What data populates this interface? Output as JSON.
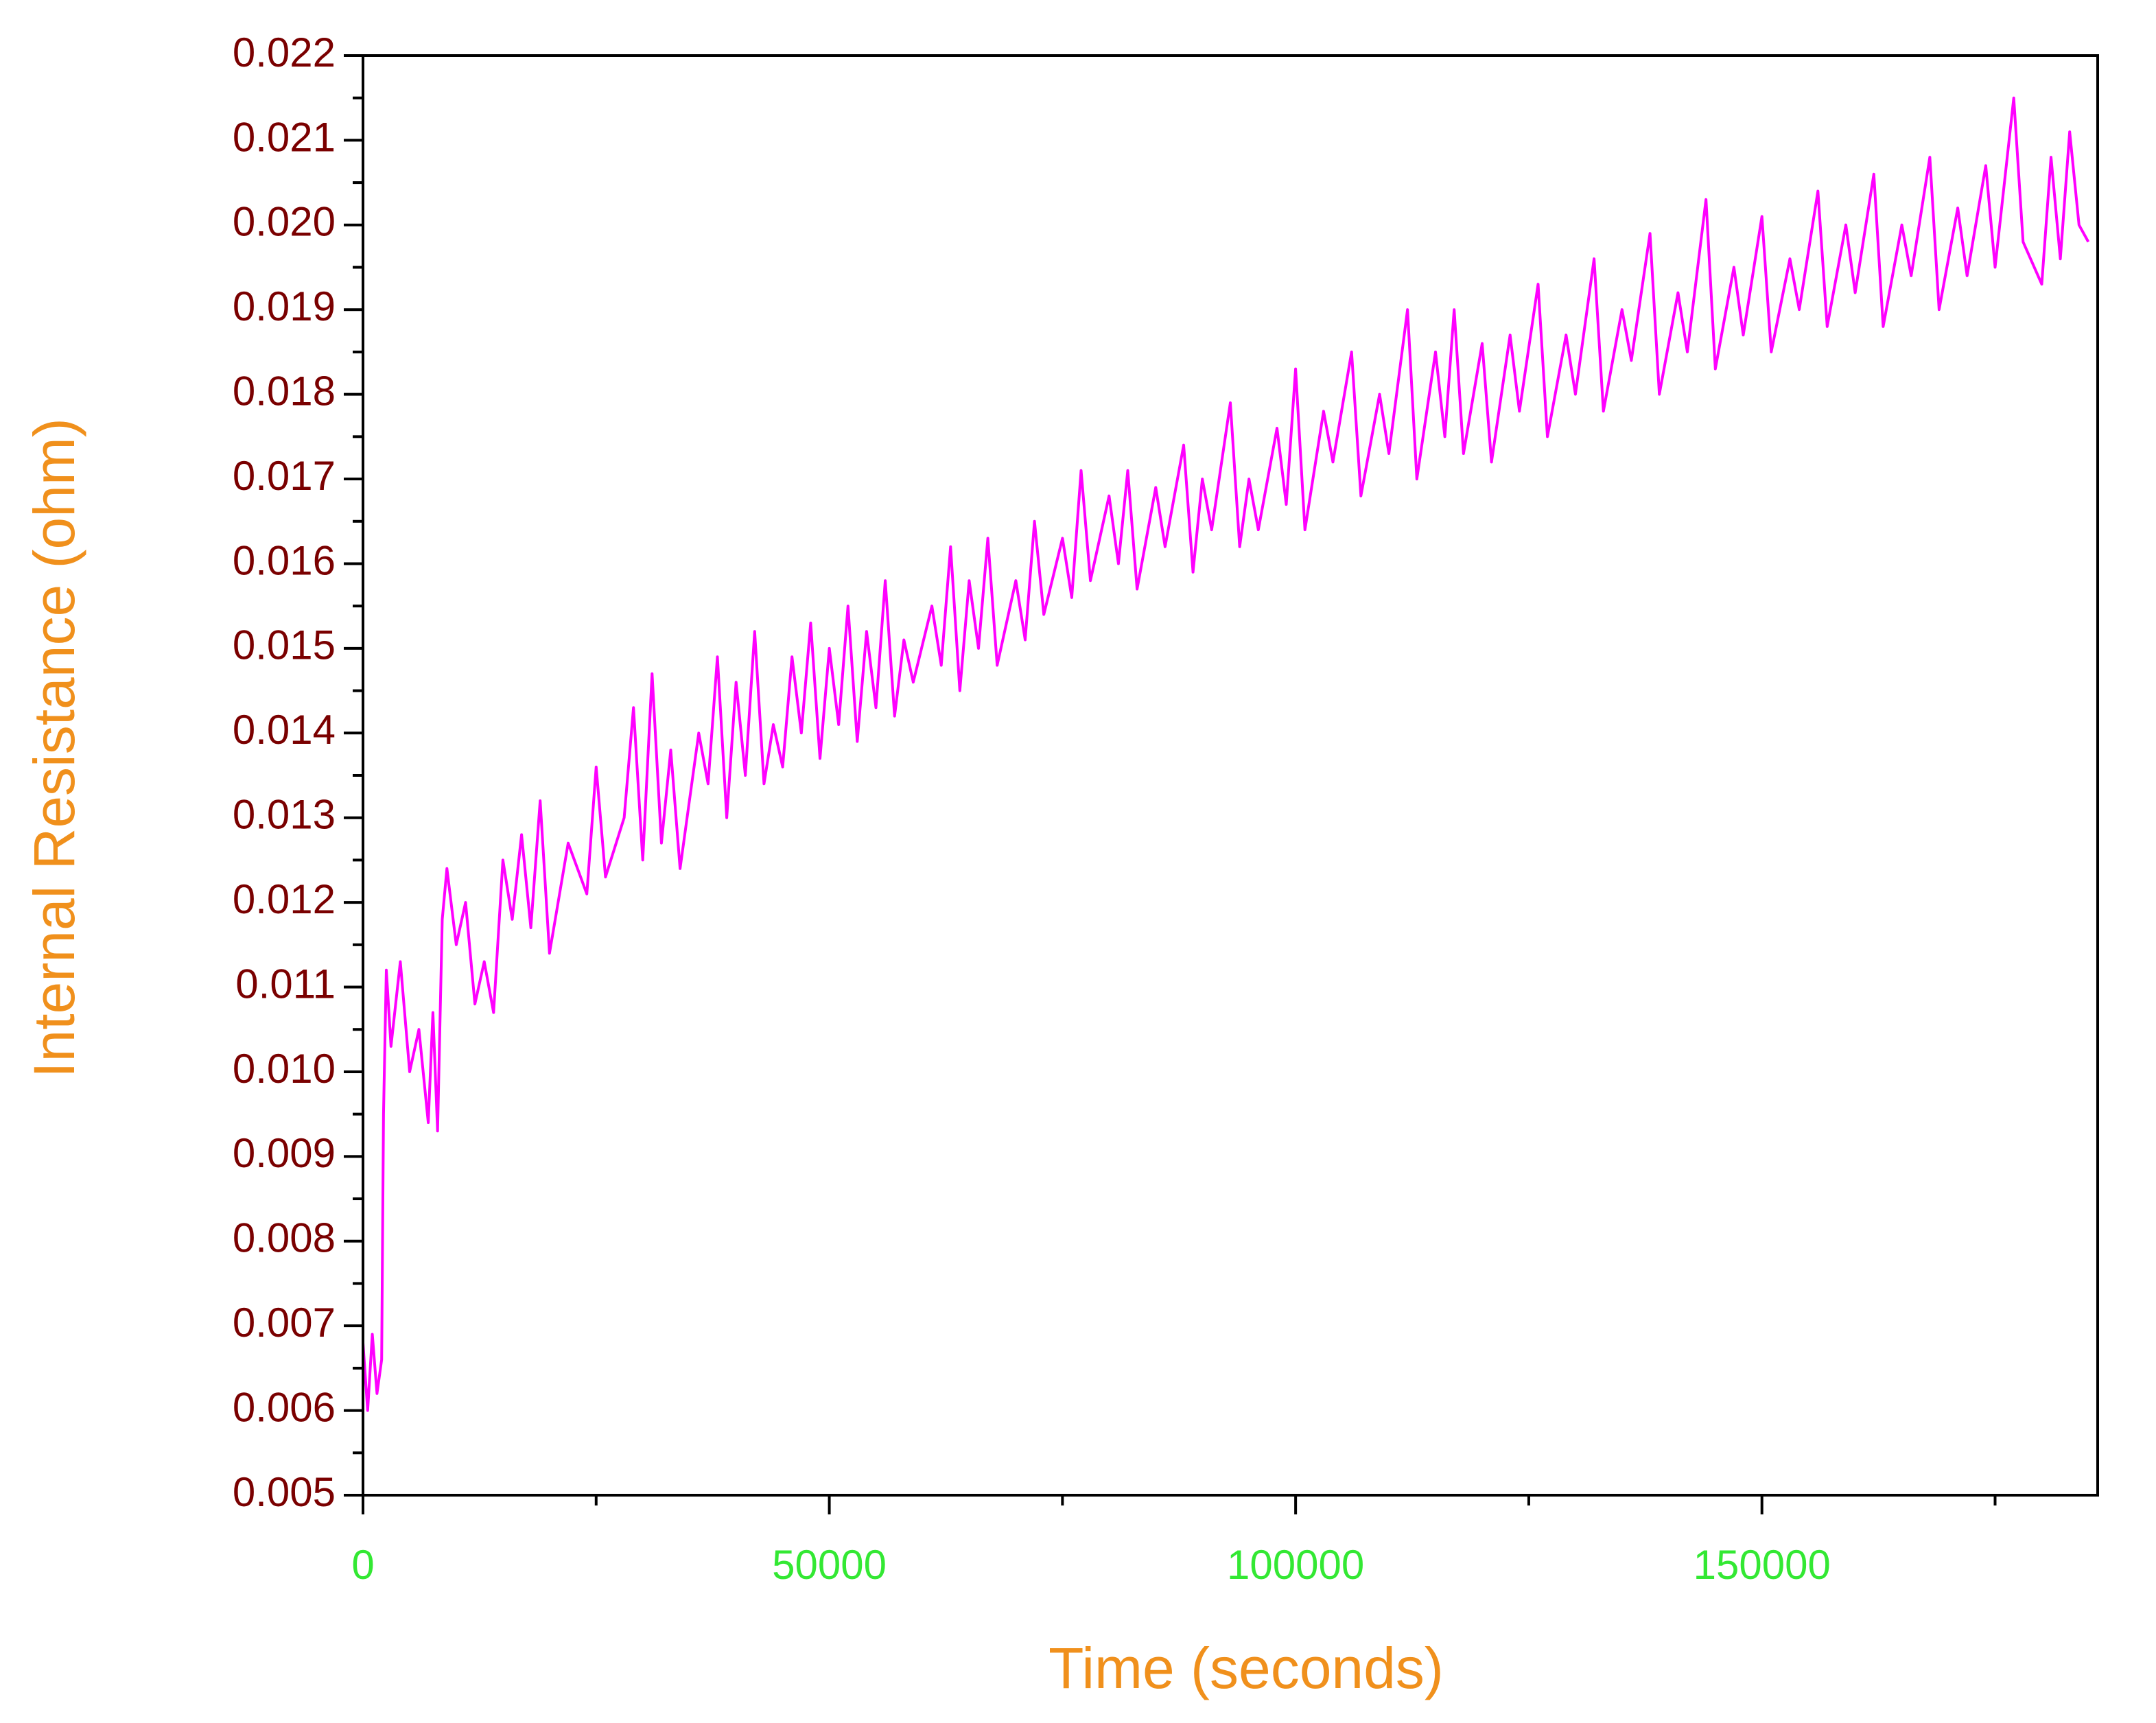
{
  "chart_data": {
    "type": "line",
    "x_label": "Time (seconds)",
    "y_label": "Internal Resistance (ohm)",
    "color": "#ff00ff",
    "xlim": [
      0,
      186000
    ],
    "xticks": [
      0,
      50000,
      100000,
      150000
    ],
    "xminor_ticks": [
      25000,
      75000,
      125000,
      175000
    ],
    "ylim": [
      0.005,
      0.022
    ],
    "yticks": [
      0.005,
      0.006,
      0.007,
      0.008,
      0.009,
      {
        "value": 0.01,
        "label": "0.010"
      },
      0.011,
      0.012,
      0.013,
      0.014,
      0.015,
      0.016,
      0.017,
      0.018,
      0.019,
      {
        "value": 0.02,
        "label": "0.020"
      },
      0.021,
      0.022
    ],
    "yminor_ticks": [
      0.0055,
      0.0065,
      0.0075,
      0.0085,
      0.0095,
      0.0105,
      0.0115,
      0.0125,
      0.0135,
      0.0145,
      0.0155,
      0.0165,
      0.0175,
      0.0185,
      0.0195,
      0.0205,
      0.0215
    ],
    "x": [
      0,
      500,
      1000,
      1500,
      2000,
      2200,
      2500,
      3000,
      4000,
      5000,
      6000,
      7000,
      7500,
      8000,
      8500,
      9000,
      10000,
      11000,
      12000,
      13000,
      14000,
      15000,
      16000,
      17000,
      18000,
      19000,
      20000,
      22000,
      24000,
      25000,
      26000,
      28000,
      29000,
      30000,
      31000,
      32000,
      33000,
      34000,
      36000,
      37000,
      38000,
      39000,
      40000,
      41000,
      42000,
      43000,
      44000,
      45000,
      46000,
      47000,
      48000,
      49000,
      50000,
      51000,
      52000,
      53000,
      54000,
      55000,
      56000,
      57000,
      58000,
      59000,
      61000,
      62000,
      63000,
      64000,
      65000,
      66000,
      67000,
      68000,
      70000,
      71000,
      72000,
      73000,
      75000,
      76000,
      77000,
      78000,
      80000,
      81000,
      82000,
      83000,
      85000,
      86000,
      88000,
      89000,
      90000,
      91000,
      93000,
      94000,
      95000,
      96000,
      98000,
      99000,
      100000,
      101000,
      103000,
      104000,
      106000,
      107000,
      109000,
      110000,
      112000,
      113000,
      115000,
      116000,
      117000,
      118000,
      120000,
      121000,
      123000,
      124000,
      126000,
      127000,
      129000,
      130000,
      132000,
      133000,
      135000,
      136000,
      138000,
      139000,
      141000,
      142000,
      144000,
      145000,
      147000,
      148000,
      150000,
      151000,
      153000,
      154000,
      156000,
      157000,
      159000,
      160000,
      162000,
      163000,
      165000,
      166000,
      168000,
      169000,
      171000,
      172000,
      174000,
      175000,
      177000,
      178000,
      180000,
      181000,
      182000,
      183000,
      184000,
      185000
    ],
    "values": [
      0.0068,
      0.006,
      0.0069,
      0.0062,
      0.0066,
      0.0095,
      0.0112,
      0.0103,
      0.0113,
      0.01,
      0.0105,
      0.0094,
      0.0107,
      0.0093,
      0.0118,
      0.0124,
      0.0115,
      0.012,
      0.0108,
      0.0113,
      0.0107,
      0.0125,
      0.0118,
      0.0128,
      0.0117,
      0.0132,
      0.0114,
      0.0127,
      0.0121,
      0.0136,
      0.0123,
      0.013,
      0.0143,
      0.0125,
      0.0147,
      0.0127,
      0.0138,
      0.0124,
      0.014,
      0.0134,
      0.0149,
      0.013,
      0.0146,
      0.0135,
      0.0152,
      0.0134,
      0.0141,
      0.0136,
      0.0149,
      0.014,
      0.0153,
      0.0137,
      0.015,
      0.0141,
      0.0155,
      0.0139,
      0.0152,
      0.0143,
      0.0158,
      0.0142,
      0.0151,
      0.0146,
      0.0155,
      0.0148,
      0.0162,
      0.0145,
      0.0158,
      0.015,
      0.0163,
      0.0148,
      0.0158,
      0.0151,
      0.0165,
      0.0154,
      0.0163,
      0.0156,
      0.0171,
      0.0158,
      0.0168,
      0.016,
      0.0171,
      0.0157,
      0.0169,
      0.0162,
      0.0174,
      0.0159,
      0.017,
      0.0164,
      0.0179,
      0.0162,
      0.017,
      0.0164,
      0.0176,
      0.0167,
      0.0183,
      0.0164,
      0.0178,
      0.0172,
      0.0185,
      0.0168,
      0.018,
      0.0173,
      0.019,
      0.017,
      0.0185,
      0.0175,
      0.019,
      0.0173,
      0.0186,
      0.0172,
      0.0187,
      0.0178,
      0.0193,
      0.0175,
      0.0187,
      0.018,
      0.0196,
      0.0178,
      0.019,
      0.0184,
      0.0199,
      0.018,
      0.0192,
      0.0185,
      0.0203,
      0.0183,
      0.0195,
      0.0187,
      0.0201,
      0.0185,
      0.0196,
      0.019,
      0.0204,
      0.0188,
      0.02,
      0.0192,
      0.0206,
      0.0188,
      0.02,
      0.0194,
      0.0208,
      0.019,
      0.0202,
      0.0194,
      0.0207,
      0.0195,
      0.0215,
      0.0198,
      0.0193,
      0.0208,
      0.0196,
      0.0211,
      0.02,
      0.0198
    ]
  }
}
